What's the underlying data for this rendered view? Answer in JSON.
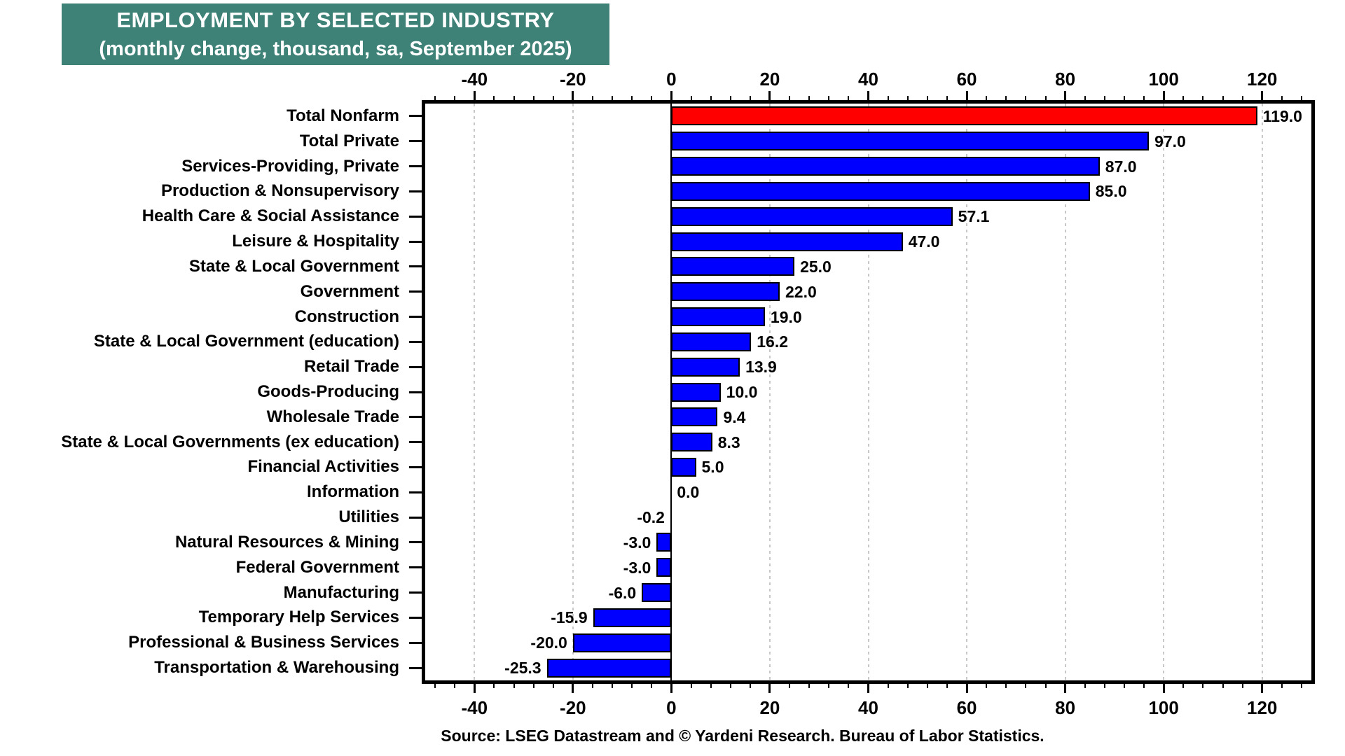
{
  "title": {
    "line1": "EMPLOYMENT BY SELECTED INDUSTRY",
    "line2": "(monthly change, thousand, sa, September 2025)"
  },
  "source_note": "Source: LSEG Datastream and © Yardeni Research. Bureau of Labor Statistics.",
  "colors": {
    "title_bg": "#3D8177",
    "title_text": "#FFFFFF",
    "bar_blue": "#0000FF",
    "bar_red": "#FF0000",
    "bar_border": "#000000",
    "grid": "#C8C8C8",
    "axis": "#000000",
    "text": "#000000",
    "background": "#FFFFFF"
  },
  "chart_data": {
    "type": "bar",
    "orientation": "horizontal",
    "title": "EMPLOYMENT BY SELECTED INDUSTRY",
    "subtitle": "(monthly change, thousand, sa, September 2025)",
    "categories": [
      "Total Nonfarm",
      "Total Private",
      "Services-Providing, Private",
      "Production & Nonsupervisory",
      "Health Care & Social Assistance",
      "Leisure & Hospitality",
      "State & Local Government",
      "Government",
      "Construction",
      "State & Local Government (education)",
      "Retail Trade",
      "Goods-Producing",
      "Wholesale Trade",
      "State & Local Governments (ex education)",
      "Financial Activities",
      "Information",
      "Utilities",
      "Natural Resources & Mining",
      "Federal Government",
      "Manufacturing",
      "Temporary Help Services",
      "Professional & Business Services",
      "Transportation & Warehousing"
    ],
    "values": [
      119.0,
      97.0,
      87.0,
      85.0,
      57.1,
      47.0,
      25.0,
      22.0,
      19.0,
      16.2,
      13.9,
      10.0,
      9.4,
      8.3,
      5.0,
      0.0,
      -0.2,
      -3.0,
      -3.0,
      -6.0,
      -15.9,
      -20.0,
      -25.3
    ],
    "value_labels": [
      "119.0",
      "97.0",
      "87.0",
      "85.0",
      "57.1",
      "47.0",
      "25.0",
      "22.0",
      "19.0",
      "16.2",
      "13.9",
      "10.0",
      "9.4",
      "8.3",
      "5.0",
      "0.0",
      "-0.2",
      "-3.0",
      "-3.0",
      "-6.0",
      "-15.9",
      "-20.0",
      "-25.3"
    ],
    "highlight_index": 0,
    "xlim": [
      -50,
      130
    ],
    "x_major_ticks": [
      -40,
      -20,
      0,
      20,
      40,
      60,
      80,
      100,
      120
    ],
    "x_tick_labels": [
      "-40",
      "-20",
      "0",
      "20",
      "40",
      "60",
      "80",
      "100",
      "120"
    ],
    "x_minor_tick_step": 4,
    "grid": {
      "vertical_dotted_at_major_ticks": true,
      "solid_zero_line": true
    },
    "legend": "none",
    "axis_ticks_position": "top and bottom"
  }
}
